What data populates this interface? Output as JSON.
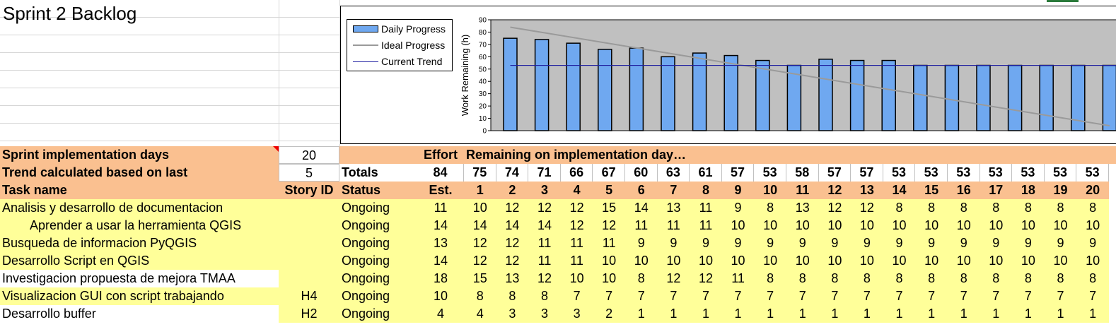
{
  "sheet": {
    "title": "Sprint 2 Backlog"
  },
  "chart_data": {
    "type": "bar",
    "ylabel": "Work Remaining (h)",
    "ylim": [
      0,
      90
    ],
    "yticks": [
      "90",
      "80",
      "70",
      "60",
      "50",
      "40",
      "30",
      "20",
      "10",
      "0"
    ],
    "categories": [
      "1",
      "2",
      "3",
      "4",
      "5",
      "6",
      "7",
      "8",
      "9",
      "10",
      "11",
      "12",
      "13",
      "14",
      "15",
      "16",
      "17",
      "18",
      "19",
      "20"
    ],
    "series": [
      {
        "name": "Daily Progress",
        "type": "bar",
        "color": "#6fa8f0",
        "values": [
          75,
          74,
          71,
          66,
          67,
          60,
          63,
          61,
          57,
          53,
          58,
          57,
          57,
          53,
          53,
          53,
          53,
          53,
          53,
          53
        ]
      },
      {
        "name": "Ideal Progress",
        "type": "line",
        "color": "#9a9a9a",
        "start": 84,
        "end": 4
      },
      {
        "name": "Current Trend",
        "type": "line",
        "color": "#1f1fa0",
        "value": 53
      }
    ],
    "plot_bg": "#c0c0c0",
    "legend": "top-left"
  },
  "config": {
    "impl_days_label": "Sprint implementation days",
    "impl_days_value": "20",
    "trend_label": "Trend calculated based on last",
    "trend_value": "5",
    "effort_label": "Effort",
    "remaining_label": "Remaining on implementation day…",
    "totals_label": "Totals",
    "totals_est": "84",
    "totals": [
      "75",
      "74",
      "71",
      "66",
      "67",
      "60",
      "63",
      "61",
      "57",
      "53",
      "58",
      "57",
      "57",
      "53",
      "53",
      "53",
      "53",
      "53",
      "53",
      "53"
    ]
  },
  "headers": {
    "task_name": "Task name",
    "story_id": "Story ID",
    "status": "Status",
    "est": "Est.",
    "days": [
      "1",
      "2",
      "3",
      "4",
      "5",
      "6",
      "7",
      "8",
      "9",
      "10",
      "11",
      "12",
      "13",
      "14",
      "15",
      "16",
      "17",
      "18",
      "19",
      "20"
    ]
  },
  "tasks": [
    {
      "name": "Analisis y desarrollo de documentacion",
      "indent": false,
      "story": "",
      "status": "Ongoing",
      "est": "11",
      "days": [
        "10",
        "12",
        "12",
        "12",
        "15",
        "14",
        "13",
        "11",
        "9",
        "8",
        "13",
        "12",
        "12",
        "8",
        "8",
        "8",
        "8",
        "8",
        "8",
        "8"
      ],
      "name_bg": "yellow"
    },
    {
      "name": "Aprender a usar la herramienta QGIS",
      "indent": true,
      "story": "",
      "status": "Ongoing",
      "est": "14",
      "days": [
        "14",
        "14",
        "14",
        "12",
        "12",
        "11",
        "11",
        "11",
        "10",
        "10",
        "10",
        "10",
        "10",
        "10",
        "10",
        "10",
        "10",
        "10",
        "10",
        "10"
      ],
      "name_bg": "yellow"
    },
    {
      "name": "Busqueda de informacion PyQGIS",
      "indent": false,
      "story": "",
      "status": "Ongoing",
      "est": "13",
      "days": [
        "12",
        "12",
        "11",
        "11",
        "11",
        "9",
        "9",
        "9",
        "9",
        "9",
        "9",
        "9",
        "9",
        "9",
        "9",
        "9",
        "9",
        "9",
        "9",
        "9"
      ],
      "name_bg": "yellow"
    },
    {
      "name": "Desarrollo Script en QGIS",
      "indent": false,
      "story": "",
      "status": "Ongoing",
      "est": "14",
      "days": [
        "12",
        "12",
        "11",
        "11",
        "10",
        "10",
        "10",
        "10",
        "10",
        "10",
        "10",
        "10",
        "10",
        "10",
        "10",
        "10",
        "10",
        "10",
        "10",
        "10"
      ],
      "name_bg": "yellow"
    },
    {
      "name": "Investigacion propuesta de mejora TMAA",
      "indent": false,
      "story": "",
      "status": "Ongoing",
      "est": "18",
      "days": [
        "15",
        "13",
        "12",
        "10",
        "10",
        "8",
        "12",
        "12",
        "11",
        "8",
        "8",
        "8",
        "8",
        "8",
        "8",
        "8",
        "8",
        "8",
        "8",
        "8"
      ],
      "name_bg": "white"
    },
    {
      "name": "Visualizacion GUI con script trabajando",
      "indent": false,
      "story": "H4",
      "status": "Ongoing",
      "est": "10",
      "days": [
        "8",
        "8",
        "8",
        "7",
        "7",
        "7",
        "7",
        "7",
        "7",
        "7",
        "7",
        "7",
        "7",
        "7",
        "7",
        "7",
        "7",
        "7",
        "7",
        "7"
      ],
      "name_bg": "yellow"
    },
    {
      "name": "Desarrollo buffer",
      "indent": false,
      "story": "H2",
      "status": "Ongoing",
      "est": "4",
      "days": [
        "4",
        "3",
        "3",
        "3",
        "2",
        "1",
        "1",
        "1",
        "1",
        "1",
        "1",
        "1",
        "1",
        "1",
        "1",
        "1",
        "1",
        "1",
        "1",
        "1"
      ],
      "name_bg": "white"
    }
  ]
}
